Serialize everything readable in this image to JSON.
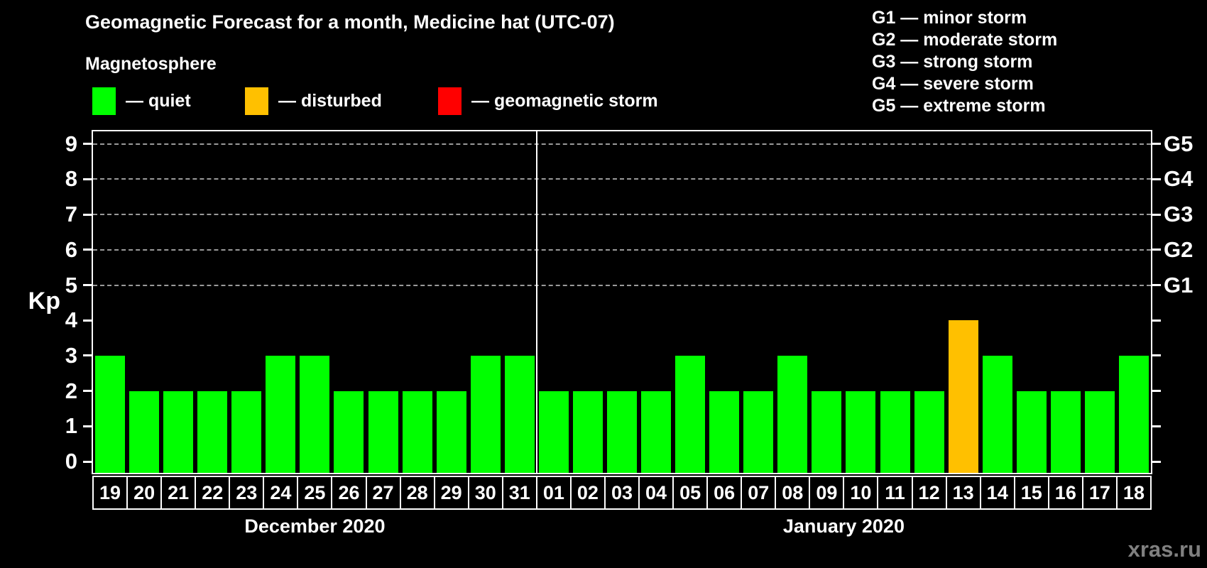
{
  "title": "Geomagnetic Forecast for a month, Medicine hat (UTC-07)",
  "legend": {
    "heading": "Magnetosphere",
    "items": [
      {
        "key": "quiet",
        "label": "— quiet",
        "color": "#00ff00"
      },
      {
        "key": "disturbed",
        "label": "— disturbed",
        "color": "#ffc000"
      },
      {
        "key": "storm",
        "label": "— geomagnetic storm",
        "color": "#ff0000"
      }
    ]
  },
  "g_legend": {
    "lines": [
      "G1 — minor storm",
      "G2 — moderate storm",
      "G3 — strong storm",
      "G4 — severe storm",
      "G5 — extreme storm"
    ]
  },
  "watermark": "xras.ru",
  "chart_data": {
    "type": "bar",
    "title": "Geomagnetic Forecast for a month, Medicine hat (UTC-07)",
    "ylabel": "Kp",
    "ylim": [
      0,
      9
    ],
    "y_ticks": [
      0,
      1,
      2,
      3,
      4,
      5,
      6,
      7,
      8,
      9
    ],
    "gridlines_at": [
      5,
      6,
      7,
      8,
      9
    ],
    "grid": "horizontal dashed at G-storm levels only",
    "legend_position": "top-left",
    "right_axis": [
      {
        "kp": 5,
        "label": "G1"
      },
      {
        "kp": 6,
        "label": "G2"
      },
      {
        "kp": 7,
        "label": "G3"
      },
      {
        "kp": 8,
        "label": "G4"
      },
      {
        "kp": 9,
        "label": "G5"
      }
    ],
    "colors": {
      "quiet": "#00ff00",
      "disturbed": "#ffc000",
      "storm": "#ff0000"
    },
    "panels": [
      {
        "month_label": "December 2020",
        "days": [
          "19",
          "20",
          "21",
          "22",
          "23",
          "24",
          "25",
          "26",
          "27",
          "28",
          "29",
          "30",
          "31"
        ],
        "values": [
          3,
          2,
          2,
          2,
          2,
          3,
          3,
          2,
          2,
          2,
          2,
          3,
          3
        ],
        "status": [
          "quiet",
          "quiet",
          "quiet",
          "quiet",
          "quiet",
          "quiet",
          "quiet",
          "quiet",
          "quiet",
          "quiet",
          "quiet",
          "quiet",
          "quiet"
        ]
      },
      {
        "month_label": "January 2020",
        "days": [
          "01",
          "02",
          "03",
          "04",
          "05",
          "06",
          "07",
          "08",
          "09",
          "10",
          "11",
          "12",
          "13",
          "14",
          "15",
          "16",
          "17",
          "18"
        ],
        "values": [
          2,
          2,
          2,
          2,
          3,
          2,
          2,
          3,
          2,
          2,
          2,
          2,
          4,
          3,
          2,
          2,
          2,
          3
        ],
        "status": [
          "quiet",
          "quiet",
          "quiet",
          "quiet",
          "quiet",
          "quiet",
          "quiet",
          "quiet",
          "quiet",
          "quiet",
          "quiet",
          "quiet",
          "disturbed",
          "quiet",
          "quiet",
          "quiet",
          "quiet",
          "quiet"
        ]
      }
    ]
  }
}
